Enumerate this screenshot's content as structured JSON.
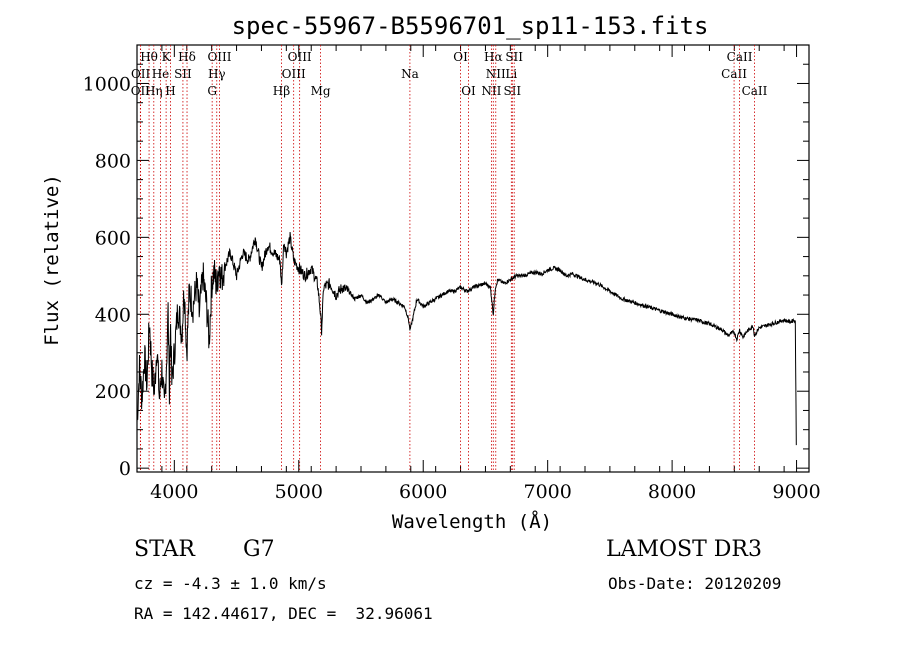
{
  "chart_data": {
    "type": "line",
    "title": "spec-55967-B5596701_sp11-153.fits",
    "xlabel": "Wavelength (Å)",
    "ylabel": "Flux (relative)",
    "xlim": [
      3700,
      9100
    ],
    "ylim": [
      -10,
      1100
    ],
    "xticks": [
      4000,
      5000,
      6000,
      7000,
      8000,
      9000
    ],
    "yticks": [
      0,
      200,
      400,
      600,
      800,
      1000
    ],
    "line_color": "#000000",
    "marker_color": "#cc0000",
    "series": [
      {
        "name": "spectrum",
        "x": [
          3700,
          3720,
          3740,
          3760,
          3780,
          3800,
          3820,
          3840,
          3860,
          3880,
          3900,
          3920,
          3940,
          3950,
          3960,
          3970,
          3980,
          4000,
          4030,
          4060,
          4080,
          4100,
          4120,
          4150,
          4180,
          4200,
          4230,
          4260,
          4280,
          4300,
          4320,
          4340,
          4360,
          4380,
          4400,
          4450,
          4500,
          4550,
          4600,
          4650,
          4700,
          4750,
          4800,
          4850,
          4861,
          4880,
          4900,
          4930,
          4960,
          5000,
          5050,
          5100,
          5150,
          5170,
          5183,
          5200,
          5250,
          5300,
          5350,
          5400,
          5450,
          5500,
          5550,
          5600,
          5650,
          5700,
          5750,
          5800,
          5850,
          5880,
          5893,
          5910,
          5950,
          6000,
          6050,
          6100,
          6150,
          6200,
          6250,
          6300,
          6350,
          6400,
          6450,
          6500,
          6540,
          6563,
          6580,
          6600,
          6650,
          6700,
          6750,
          6800,
          6850,
          6900,
          6950,
          7000,
          7050,
          7100,
          7150,
          7200,
          7300,
          7400,
          7500,
          7600,
          7700,
          7800,
          7900,
          8000,
          8100,
          8200,
          8300,
          8400,
          8450,
          8498,
          8520,
          8542,
          8570,
          8600,
          8650,
          8662,
          8700,
          8750,
          8800,
          8850,
          8900,
          8950,
          8980,
          8990,
          8998
        ],
        "values": [
          120,
          260,
          180,
          290,
          220,
          380,
          250,
          200,
          320,
          180,
          260,
          150,
          300,
          410,
          210,
          380,
          220,
          300,
          420,
          350,
          470,
          300,
          460,
          420,
          480,
          400,
          500,
          420,
          330,
          480,
          510,
          470,
          530,
          490,
          520,
          560,
          500,
          560,
          540,
          600,
          520,
          580,
          560,
          540,
          470,
          590,
          560,
          600,
          540,
          520,
          500,
          520,
          480,
          420,
          360,
          470,
          480,
          450,
          470,
          460,
          440,
          450,
          430,
          440,
          450,
          430,
          440,
          430,
          420,
          390,
          360,
          380,
          440,
          420,
          430,
          440,
          450,
          460,
          460,
          470,
          460,
          470,
          475,
          480,
          470,
          400,
          470,
          490,
          480,
          490,
          500,
          500,
          505,
          510,
          505,
          515,
          520,
          515,
          500,
          505,
          490,
          480,
          460,
          440,
          430,
          420,
          410,
          400,
          390,
          385,
          375,
          360,
          345,
          355,
          335,
          360,
          340,
          355,
          370,
          345,
          365,
          370,
          375,
          380,
          385,
          380,
          385,
          380,
          60
        ]
      }
    ],
    "line_markers": [
      {
        "name": "OII",
        "wavelength": 3727,
        "row": 2
      },
      {
        "name": "OII",
        "wavelength": 3729,
        "row": 1
      },
      {
        "name": "Hθ",
        "wavelength": 3797,
        "row": 0
      },
      {
        "name": "Hη",
        "wavelength": 3835,
        "row": 2
      },
      {
        "name": "He",
        "wavelength": 3889,
        "row": 1
      },
      {
        "name": "K",
        "wavelength": 3934,
        "row": 0
      },
      {
        "name": "H",
        "wavelength": 3969,
        "row": 2
      },
      {
        "name": "SII",
        "wavelength": 4069,
        "row": 1
      },
      {
        "name": "Hδ",
        "wavelength": 4102,
        "row": 0
      },
      {
        "name": "G",
        "wavelength": 4304,
        "row": 2
      },
      {
        "name": "OIII",
        "wavelength": 4363,
        "row": 0
      },
      {
        "name": "Hγ",
        "wavelength": 4341,
        "row": 1
      },
      {
        "name": "Hβ",
        "wavelength": 4861,
        "row": 2
      },
      {
        "name": "OIII",
        "wavelength": 4959,
        "row": 1
      },
      {
        "name": "OIII",
        "wavelength": 5007,
        "row": 0
      },
      {
        "name": "Mg",
        "wavelength": 5175,
        "row": 2
      },
      {
        "name": "Na",
        "wavelength": 5893,
        "row": 1
      },
      {
        "name": "OI",
        "wavelength": 6300,
        "row": 0
      },
      {
        "name": "OI",
        "wavelength": 6364,
        "row": 2
      },
      {
        "name": "NII",
        "wavelength": 6548,
        "row": 2
      },
      {
        "name": "Hα",
        "wavelength": 6563,
        "row": 0
      },
      {
        "name": "NII",
        "wavelength": 6583,
        "row": 1
      },
      {
        "name": "SII",
        "wavelength": 6716,
        "row": 2
      },
      {
        "name": "Li",
        "wavelength": 6708,
        "row": 1
      },
      {
        "name": "SII",
        "wavelength": 6731,
        "row": 0
      },
      {
        "name": "CaII",
        "wavelength": 8498,
        "row": 1
      },
      {
        "name": "CaII",
        "wavelength": 8542,
        "row": 0
      },
      {
        "name": "CaII",
        "wavelength": 8662,
        "row": 2
      }
    ]
  },
  "info": {
    "class_label": "STAR",
    "subclass": "G7",
    "survey": "LAMOST DR3",
    "velocity": "cz = -4.3 ± 1.0 km/s",
    "obs_date": "Obs-Date: 20120209",
    "coords": "RA = 142.44617, DEC =  32.96061"
  }
}
